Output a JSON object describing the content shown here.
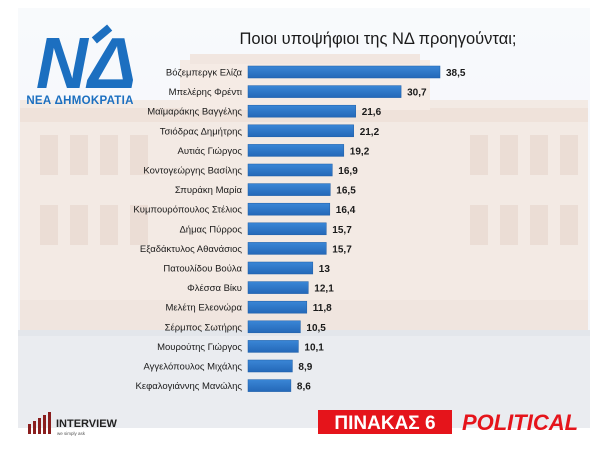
{
  "party_logo": {
    "letters": "ΝΔ",
    "name": "ΝΕΑ ΔΗΜΟΚΡΑΤΙΑ"
  },
  "footer": {
    "brand": "INTERVIEW",
    "tagline": "we simply ask",
    "table_label": "ΠΙΝΑΚΑΣ 6",
    "outlet": "POLITICAL"
  },
  "colors": {
    "bar": "#2f78c8",
    "bar_edge": "#1d5ea8",
    "red": "#e5141b",
    "dark_text": "#1a1a1a",
    "logo_blue": "#1c6fc0"
  },
  "chart_data": {
    "type": "bar",
    "orientation": "horizontal",
    "title": "Ποιοι υποψήφιοι της ΝΔ προηγούνται;",
    "categories": [
      "Βόζεμπεργκ Ελίζα",
      "Μπελέρης Φρέντι",
      "Μαϊμαράκης Βαγγέλης",
      "Τσιόδρας Δημήτρης",
      "Αυτιάς Γιώργος",
      "Κοντογεώργης Βασίλης",
      "Σπυράκη Μαρία",
      "Κυμπουρόπουλος Στέλιος",
      "Δήμας Πύρρος",
      "Εξαδάκτυλος Αθανάσιος",
      "Πατουλίδου Βούλα",
      "Φλέσσα Βίκυ",
      "Μελέτη Ελεονώρα",
      "Σέρμπος Σωτήρης",
      "Μουρούτης Γιώργος",
      "Αγγελόπουλος Μιχάλης",
      "Κεφαλογιάννης Μανώλης"
    ],
    "values": [
      38.5,
      30.7,
      21.6,
      21.2,
      19.2,
      16.9,
      16.5,
      16.4,
      15.7,
      15.7,
      13,
      12.1,
      11.8,
      10.5,
      10.1,
      8.9,
      8.6
    ],
    "value_labels": [
      "38,5",
      "30,7",
      "21,6",
      "21,2",
      "19,2",
      "16,9",
      "16,5",
      "16,4",
      "15,7",
      "15,7",
      "13",
      "12,1",
      "11,8",
      "10,5",
      "10,1",
      "8,9",
      "8,6"
    ],
    "xlim": [
      0,
      40
    ],
    "grid": false,
    "legend": "none"
  }
}
